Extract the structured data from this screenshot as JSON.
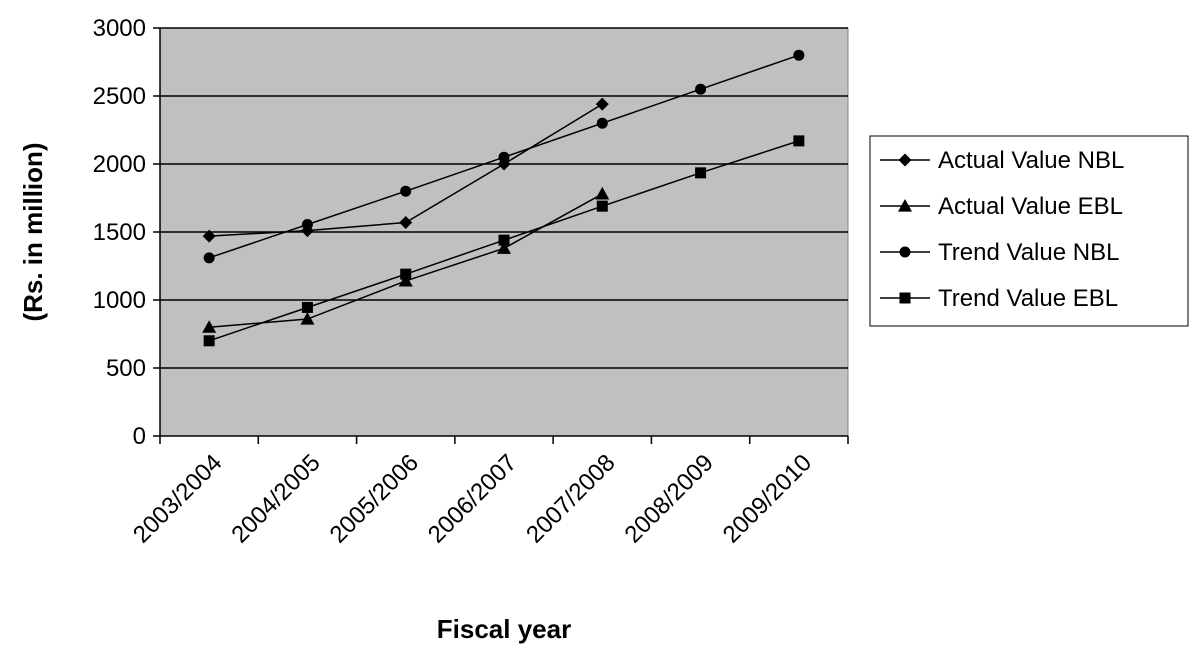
{
  "chart_data": {
    "type": "line",
    "title": "",
    "xlabel": "Fiscal year",
    "ylabel": "(Rs. in million)",
    "categories": [
      "2003/2004",
      "2004/2005",
      "2005/2006",
      "2006/2007",
      "2007/2008",
      "2008/2009",
      "2009/2010"
    ],
    "ylim": [
      0,
      3000
    ],
    "yticks": [
      0,
      500,
      1000,
      1500,
      2000,
      2500,
      3000
    ],
    "grid": true,
    "plot_background": "#c0c0c0",
    "legend_position": "right",
    "series": [
      {
        "name": "Actual Value NBL",
        "marker": "diamond",
        "values": [
          1470,
          1510,
          1570,
          2000,
          2440,
          null,
          null
        ]
      },
      {
        "name": "Actual Value EBL",
        "marker": "triangle",
        "values": [
          800,
          860,
          1140,
          1380,
          1780,
          null,
          null
        ]
      },
      {
        "name": "Trend Value NBL",
        "marker": "circle",
        "values": [
          1310,
          1555,
          1800,
          2050,
          2300,
          2550,
          2800
        ]
      },
      {
        "name": "Trend Value EBL",
        "marker": "square",
        "values": [
          700,
          945,
          1190,
          1440,
          1690,
          1935,
          2170
        ]
      }
    ]
  }
}
